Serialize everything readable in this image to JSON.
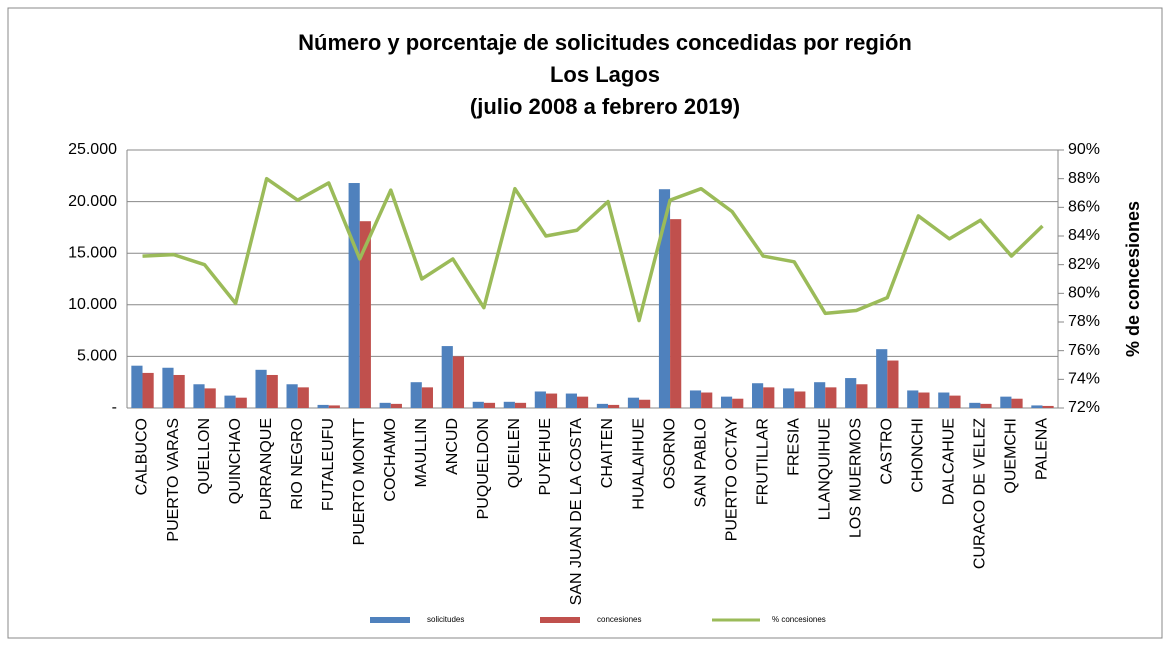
{
  "chart_data": {
    "type": "bar_line",
    "title": [
      "Número y porcentaje de solicitudes concedidas por región",
      "Los Lagos",
      "(julio 2008 a febrero 2019)"
    ],
    "y2label": "% de concesiones",
    "categories": [
      "CALBUCO",
      "PUERTO VARAS",
      "QUELLON",
      "QUINCHAO",
      "PURRANQUE",
      "RIO NEGRO",
      "FUTALEUFU",
      "PUERTO MONTT",
      "COCHAMO",
      "MAULLIN",
      "ANCUD",
      "PUQUELDON",
      "QUEILEN",
      "PUYEHUE",
      "SAN JUAN DE LA COSTA",
      "CHAITEN",
      "HUALAIHUE",
      "OSORNO",
      "SAN PABLO",
      "PUERTO OCTAY",
      "FRUTILLAR",
      "FRESIA",
      "LLANQUIHUE",
      "LOS MUERMOS",
      "CASTRO",
      "CHONCHI",
      "DALCAHUE",
      "CURACO DE VELEZ",
      "QUEMCHI",
      "PALENA"
    ],
    "series": [
      {
        "name": "solicitudes",
        "color": "#4f81bd",
        "type": "bar",
        "values": [
          4100,
          3900,
          2300,
          1200,
          3700,
          2300,
          300,
          21800,
          500,
          2500,
          6000,
          600,
          600,
          1600,
          1400,
          400,
          1000,
          21200,
          1700,
          1100,
          2400,
          1900,
          2500,
          2900,
          5700,
          1700,
          1500,
          500,
          1100,
          250
        ]
      },
      {
        "name": "concesiones",
        "color": "#c0504d",
        "type": "bar",
        "values": [
          3400,
          3200,
          1900,
          1000,
          3200,
          2000,
          250,
          18100,
          400,
          2000,
          5000,
          500,
          500,
          1400,
          1100,
          300,
          800,
          18300,
          1500,
          900,
          2000,
          1600,
          2000,
          2300,
          4600,
          1500,
          1200,
          400,
          900,
          200
        ]
      },
      {
        "name": "% concesiones",
        "color": "#9bbb59",
        "type": "line",
        "axis": "y2",
        "values": [
          82.6,
          82.7,
          82.0,
          79.3,
          88.0,
          86.5,
          87.7,
          82.4,
          87.2,
          81.0,
          82.4,
          79.0,
          87.3,
          84.0,
          84.4,
          86.4,
          78.1,
          86.5,
          87.3,
          85.7,
          82.6,
          82.2,
          78.6,
          78.8,
          79.7,
          85.4,
          83.8,
          85.1,
          82.6,
          84.7
        ]
      }
    ],
    "ylim": [
      0,
      25000
    ],
    "yticks": [
      {
        "value": 0,
        "label": "-"
      },
      {
        "value": 5000,
        "label": "5.000"
      },
      {
        "value": 10000,
        "label": "10.000"
      },
      {
        "value": 15000,
        "label": "15.000"
      },
      {
        "value": 20000,
        "label": "20.000"
      },
      {
        "value": 25000,
        "label": "25.000"
      }
    ],
    "y2lim": [
      72,
      90
    ],
    "y2ticks": [
      {
        "value": 72,
        "label": "72%"
      },
      {
        "value": 74,
        "label": "74%"
      },
      {
        "value": 76,
        "label": "76%"
      },
      {
        "value": 78,
        "label": "78%"
      },
      {
        "value": 80,
        "label": "80%"
      },
      {
        "value": 82,
        "label": "82%"
      },
      {
        "value": 84,
        "label": "84%"
      },
      {
        "value": 86,
        "label": "86%"
      },
      {
        "value": 88,
        "label": "88%"
      },
      {
        "value": 90,
        "label": "90%"
      }
    ],
    "grid": true,
    "legend": "bottom"
  }
}
